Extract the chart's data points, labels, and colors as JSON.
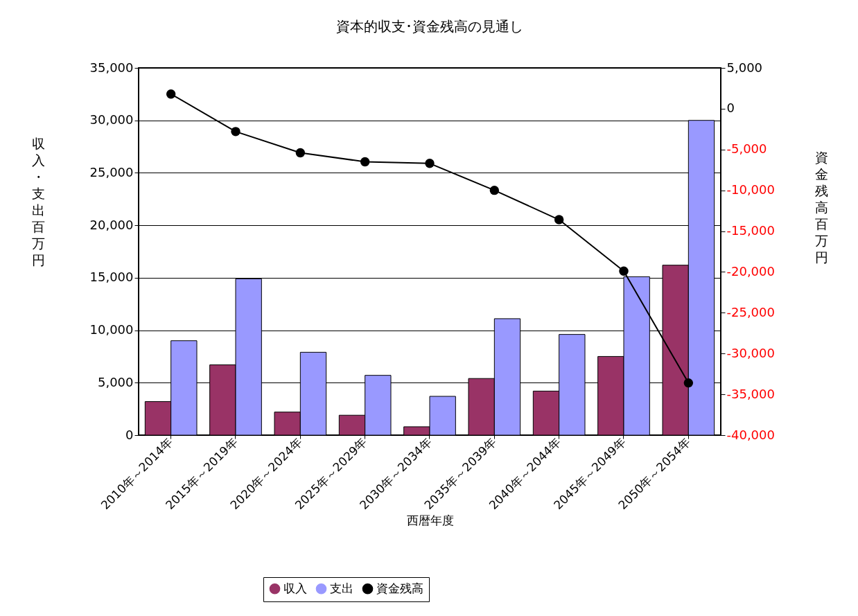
{
  "chart_data": {
    "type": "bar",
    "title": "資本的収支･資金残高の見通し",
    "xlabel": "西暦年度",
    "ylabel": "収入・支出百万円",
    "y2label": "資金残高百万円",
    "categories": [
      "2010年～2014年",
      "2015年～2019年",
      "2020年～2024年",
      "2025年～2029年",
      "2030年～2034年",
      "2035年～2039年",
      "2040年～2044年",
      "2045年～2049年",
      "2050年～2054年"
    ],
    "series": [
      {
        "name": "収入",
        "color": "#993366",
        "values": [
          3200,
          6700,
          2200,
          1900,
          800,
          5400,
          4200,
          7500,
          16200
        ]
      },
      {
        "name": "支出",
        "color": "#9999ff",
        "values": [
          9000,
          14900,
          7900,
          5700,
          3700,
          11100,
          9600,
          15100,
          30000
        ]
      },
      {
        "name": "資金残高",
        "type": "line",
        "axis": "y2",
        "color": "#000000",
        "marker": "circle",
        "values": [
          1800,
          -2800,
          -5400,
          -6500,
          -6700,
          -10000,
          -13600,
          -19900,
          -33600
        ]
      }
    ],
    "ylim": [
      0,
      35000
    ],
    "yticks": [
      {
        "value": 0,
        "label": "0"
      },
      {
        "value": 5000,
        "label": "5,000"
      },
      {
        "value": 10000,
        "label": "10,000"
      },
      {
        "value": 15000,
        "label": "15,000"
      },
      {
        "value": 20000,
        "label": "20,000"
      },
      {
        "value": 25000,
        "label": "25,000"
      },
      {
        "value": 30000,
        "label": "30,000"
      },
      {
        "value": 35000,
        "label": "35,000"
      }
    ],
    "y2lim": [
      -40000,
      5000
    ],
    "y2ticks": [
      {
        "value": -40000,
        "label": "-40,000"
      },
      {
        "value": -35000,
        "label": "-35,000"
      },
      {
        "value": -30000,
        "label": "-30,000"
      },
      {
        "value": -25000,
        "label": "-25,000"
      },
      {
        "value": -20000,
        "label": "-20,000"
      },
      {
        "value": -15000,
        "label": "-15,000"
      },
      {
        "value": -10000,
        "label": "-10,000"
      },
      {
        "value": -5000,
        "label": "-5,000"
      },
      {
        "value": 0,
        "label": "0"
      },
      {
        "value": 5000,
        "label": "5,000"
      }
    ],
    "grid": "y",
    "legend": "bottom"
  }
}
